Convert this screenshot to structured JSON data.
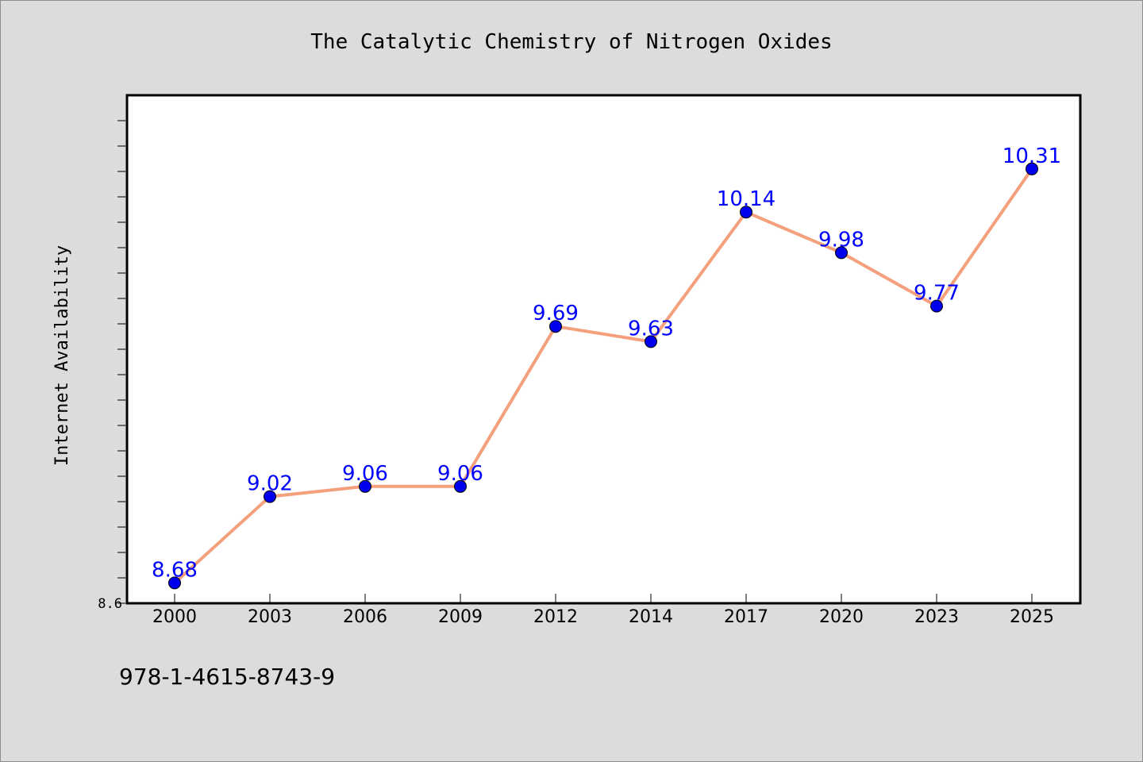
{
  "chart_data": {
    "type": "line",
    "title": "The Catalytic Chemistry of Nitrogen Oxides",
    "xlabel": "",
    "ylabel": "Internet Availability",
    "categories": [
      "2000",
      "2003",
      "2006",
      "2009",
      "2012",
      "2014",
      "2017",
      "2020",
      "2023",
      "2025"
    ],
    "series": [
      {
        "values": [
          8.68,
          9.02,
          9.06,
          9.06,
          9.69,
          9.63,
          10.14,
          9.98,
          9.77,
          10.31
        ]
      }
    ],
    "data_labels": [
      "8.68",
      "9.02",
      "9.06",
      "9.06",
      "9.69",
      "9.63",
      "10.14",
      "9.98",
      "9.77",
      "10.31"
    ],
    "yticks": [
      "8.6"
    ],
    "ylim": [
      8.6,
      10.6
    ],
    "grid": false,
    "colors": {
      "line": "#f4a07c",
      "marker": "#0000ee",
      "data_label": "#0000ff",
      "background": "#dcdcdc",
      "plot_background": "#ffffff",
      "axis": "#000000"
    }
  },
  "footer": {
    "isbn": "978-1-4615-8743-9"
  }
}
